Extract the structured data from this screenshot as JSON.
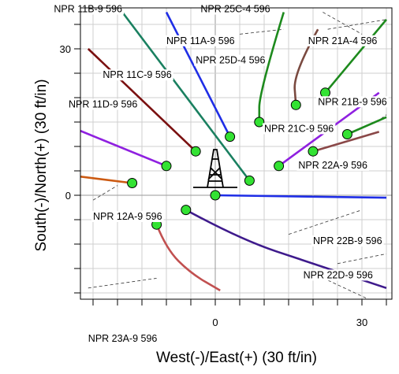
{
  "chart_data": {
    "type": "line",
    "title": "",
    "xlabel": "West(-)/East(+) (30 ft/in)",
    "ylabel": "South(-)/North(+) (30 ft/in)",
    "xlim": [
      -34,
      36
    ],
    "ylim": [
      -21,
      38
    ],
    "x_ticks": [
      0,
      30
    ],
    "y_ticks": [
      0,
      30
    ],
    "grid": true,
    "series": [
      {
        "name": "NPR 11B-9 596",
        "color": "#1a8060",
        "points": [
          [
            -19,
            37.5
          ],
          [
            7,
            3
          ]
        ]
      },
      {
        "name": "NPR 11A-9 596",
        "color": "#1f2ee6",
        "points": [
          [
            -10,
            37.5
          ],
          [
            3,
            12
          ]
        ]
      },
      {
        "name": "NPR 11C-9 596",
        "color": "#7a1010",
        "points": [
          [
            -26,
            30
          ],
          [
            -4,
            9
          ]
        ]
      },
      {
        "name": "NPR 11D-9 596",
        "color": "#8f20e0",
        "points": [
          [
            -32,
            15
          ],
          [
            -10,
            6
          ]
        ]
      },
      {
        "name": "NPR 12A-9 596",
        "color": "#cc5a12",
        "points": [
          [
            -33,
            4.5
          ],
          [
            -17,
            2.5
          ]
        ]
      },
      {
        "name": "NPR 25C-4 596",
        "color": "#1d8a1d",
        "points": [
          [
            14,
            37.5
          ],
          [
            9,
            21
          ],
          [
            9,
            15
          ]
        ]
      },
      {
        "name": "NPR 21A-4 596",
        "color": "#7a4a40",
        "points": [
          [
            21,
            34
          ],
          [
            16,
            25
          ],
          [
            16.5,
            18.5
          ]
        ]
      },
      {
        "name": "NPR 21B-9 596",
        "color": "#8f20e0",
        "points": [
          [
            33.5,
            21
          ],
          [
            13,
            6
          ]
        ]
      },
      {
        "name": "NPR 21C-9 596",
        "color": "#1d8a1d",
        "points": [
          [
            35,
            36
          ],
          [
            22.5,
            21
          ]
        ]
      },
      {
        "name": "NPR 22A-9 596",
        "color": "#1d8a1d",
        "points": [
          [
            35,
            16
          ],
          [
            27,
            12.5
          ]
        ]
      },
      {
        "name": "NPR 22A-9 596 (b)",
        "color": "#8a4848",
        "points": [
          [
            33.5,
            13
          ],
          [
            20,
            9
          ]
        ]
      },
      {
        "name": "NPR 22B-9 596",
        "color": "#1f2ee6",
        "points": [
          [
            0,
            0
          ],
          [
            35,
            -0.5
          ]
        ]
      },
      {
        "name": "NPR 22D-9 596",
        "color": "#3e1a8c",
        "points": [
          [
            -6,
            -3
          ],
          [
            5,
            -9
          ],
          [
            20,
            -14
          ],
          [
            35,
            -19
          ]
        ]
      },
      {
        "name": "NPR 23A-9 596",
        "color": "#c15050",
        "points": [
          [
            -12,
            -6
          ],
          [
            -10,
            -11
          ],
          [
            -5,
            -16
          ],
          [
            1,
            -19.5
          ]
        ]
      }
    ],
    "wellhead_ends": [
      [
        7,
        3
      ],
      [
        3,
        12
      ],
      [
        -4,
        9
      ],
      [
        -10,
        6
      ],
      [
        -17,
        2.5
      ],
      [
        9,
        15
      ],
      [
        16.5,
        18.5
      ],
      [
        13,
        6
      ],
      [
        22.5,
        21
      ],
      [
        27,
        12.5
      ],
      [
        20,
        9
      ],
      [
        0,
        0
      ],
      [
        -6,
        -3
      ],
      [
        -12,
        -6
      ]
    ],
    "labels": [
      {
        "text": "NPR 11B-9 596",
        "x": -33,
        "y": 37.5
      },
      {
        "text": "NPR 25C-4 596",
        "x": -3,
        "y": 37.5
      },
      {
        "text": "NPR 11A-9 596",
        "x": -10,
        "y": 31
      },
      {
        "text": "NPR 21A-4 596",
        "x": 19,
        "y": 31
      },
      {
        "text": "NPR 25D-4 596",
        "x": -4,
        "y": 27
      },
      {
        "text": "NPR 11C-9 596",
        "x": -23,
        "y": 24
      },
      {
        "text": "NPR 11D-9 596",
        "x": -30,
        "y": 18
      },
      {
        "text": "NPR 21B-9 596",
        "x": 21,
        "y": 18.5
      },
      {
        "text": "NPR 21C-9 596",
        "x": 10,
        "y": 13
      },
      {
        "text": "NPR 22A-9 596",
        "x": 17,
        "y": 5.5
      },
      {
        "text": "NPR 12A-9 596",
        "x": -25,
        "y": -5
      },
      {
        "text": "NPR 22B-9 596",
        "x": 20,
        "y": -10
      },
      {
        "text": "NPR 22D-9 596",
        "x": 18,
        "y": -17
      },
      {
        "text": "NPR 23A-9 596",
        "x": -26,
        "y": -30
      }
    ]
  }
}
